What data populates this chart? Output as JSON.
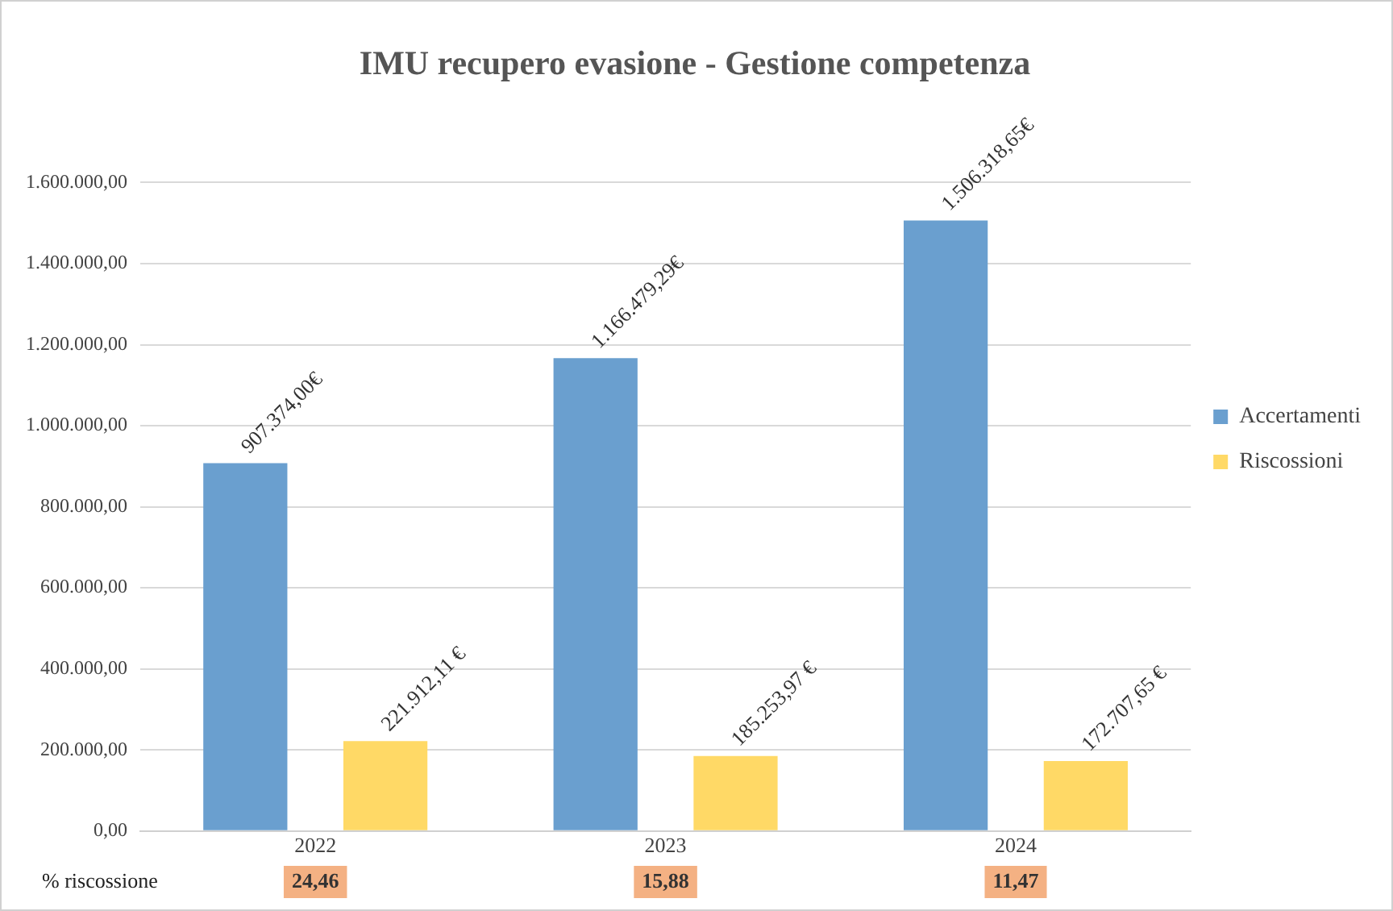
{
  "chart_data": {
    "type": "bar",
    "title": "IMU recupero evasione - Gestione competenza",
    "categories": [
      "2022",
      "2023",
      "2024"
    ],
    "series": [
      {
        "name": "Accertamenti",
        "color": "#6a9fcf",
        "values": [
          907374.0,
          1166479.29,
          1506318.65
        ],
        "value_labels": [
          "907.374,00€",
          "1.166.479,29€",
          "1.506.318,65€"
        ]
      },
      {
        "name": "Riscossioni",
        "color": "#ffd966",
        "values": [
          221912.11,
          185253.97,
          172707.65
        ],
        "value_labels": [
          "221.912,11 €",
          "185.253,97 €",
          "172.707,65 €"
        ]
      }
    ],
    "ylim": [
      0,
      1600000
    ],
    "yticks": [
      {
        "value": 0,
        "label": "0,00"
      },
      {
        "value": 200000,
        "label": "200.000,00"
      },
      {
        "value": 400000,
        "label": "400.000,00"
      },
      {
        "value": 600000,
        "label": "600.000,00"
      },
      {
        "value": 800000,
        "label": "800.000,00"
      },
      {
        "value": 1000000,
        "label": "1.000.000,00"
      },
      {
        "value": 1200000,
        "label": "1.200.000,00"
      },
      {
        "value": 1400000,
        "label": "1.400.000,00"
      },
      {
        "value": 1600000,
        "label": "1.600.000,00"
      }
    ],
    "grid": "y",
    "legend": "right",
    "annotations": [
      "% riscossione",
      "24,46",
      "15,88",
      "11,47"
    ]
  }
}
